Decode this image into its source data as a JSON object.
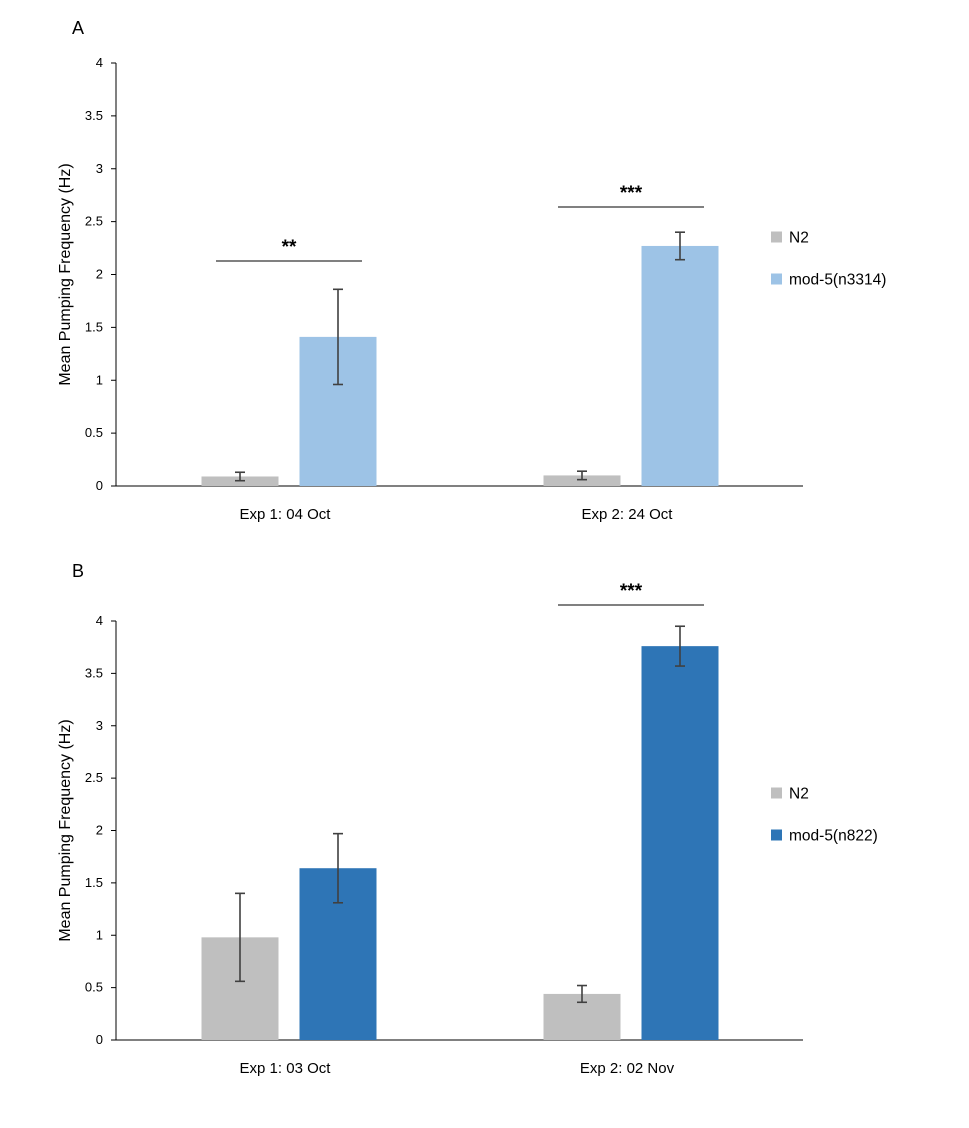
{
  "chart_data": [
    {
      "panel": "A",
      "type": "bar",
      "ylabel": "Mean Pumping Frequency (Hz)",
      "ylim": [
        0,
        4
      ],
      "yticks": [
        "0",
        "0.5",
        "1",
        "1.5",
        "2",
        "2.5",
        "3",
        "3.5",
        "4"
      ],
      "grid": false,
      "legend_position": "right",
      "categories": [
        "Exp 1: 04 Oct",
        "Exp 2: 24 Oct"
      ],
      "series": [
        {
          "name": "N2",
          "color": "#bfbfbf",
          "values": [
            0.09,
            0.1
          ],
          "errors": [
            0.04,
            0.04
          ]
        },
        {
          "name": "mod-5(n3314)",
          "color": "#9dc3e6",
          "values": [
            1.41,
            2.27
          ],
          "errors": [
            0.45,
            0.13
          ]
        }
      ],
      "significance": [
        "**",
        "***"
      ]
    },
    {
      "panel": "B",
      "type": "bar",
      "ylabel": "Mean Pumping Frequency (Hz)",
      "ylim": [
        0,
        4
      ],
      "yticks": [
        "0",
        "0.5",
        "1",
        "1.5",
        "2",
        "2.5",
        "3",
        "3.5",
        "4"
      ],
      "grid": false,
      "legend_position": "right",
      "categories": [
        "Exp 1: 03 Oct",
        "Exp 2: 02 Nov"
      ],
      "series": [
        {
          "name": "N2",
          "color": "#bfbfbf",
          "values": [
            0.98,
            0.44
          ],
          "errors": [
            0.42,
            0.08
          ]
        },
        {
          "name": "mod-5(n822)",
          "color": "#2e75b6",
          "values": [
            1.64,
            3.76
          ],
          "errors": [
            0.33,
            0.19
          ]
        }
      ],
      "significance": [
        "",
        "***"
      ]
    }
  ]
}
